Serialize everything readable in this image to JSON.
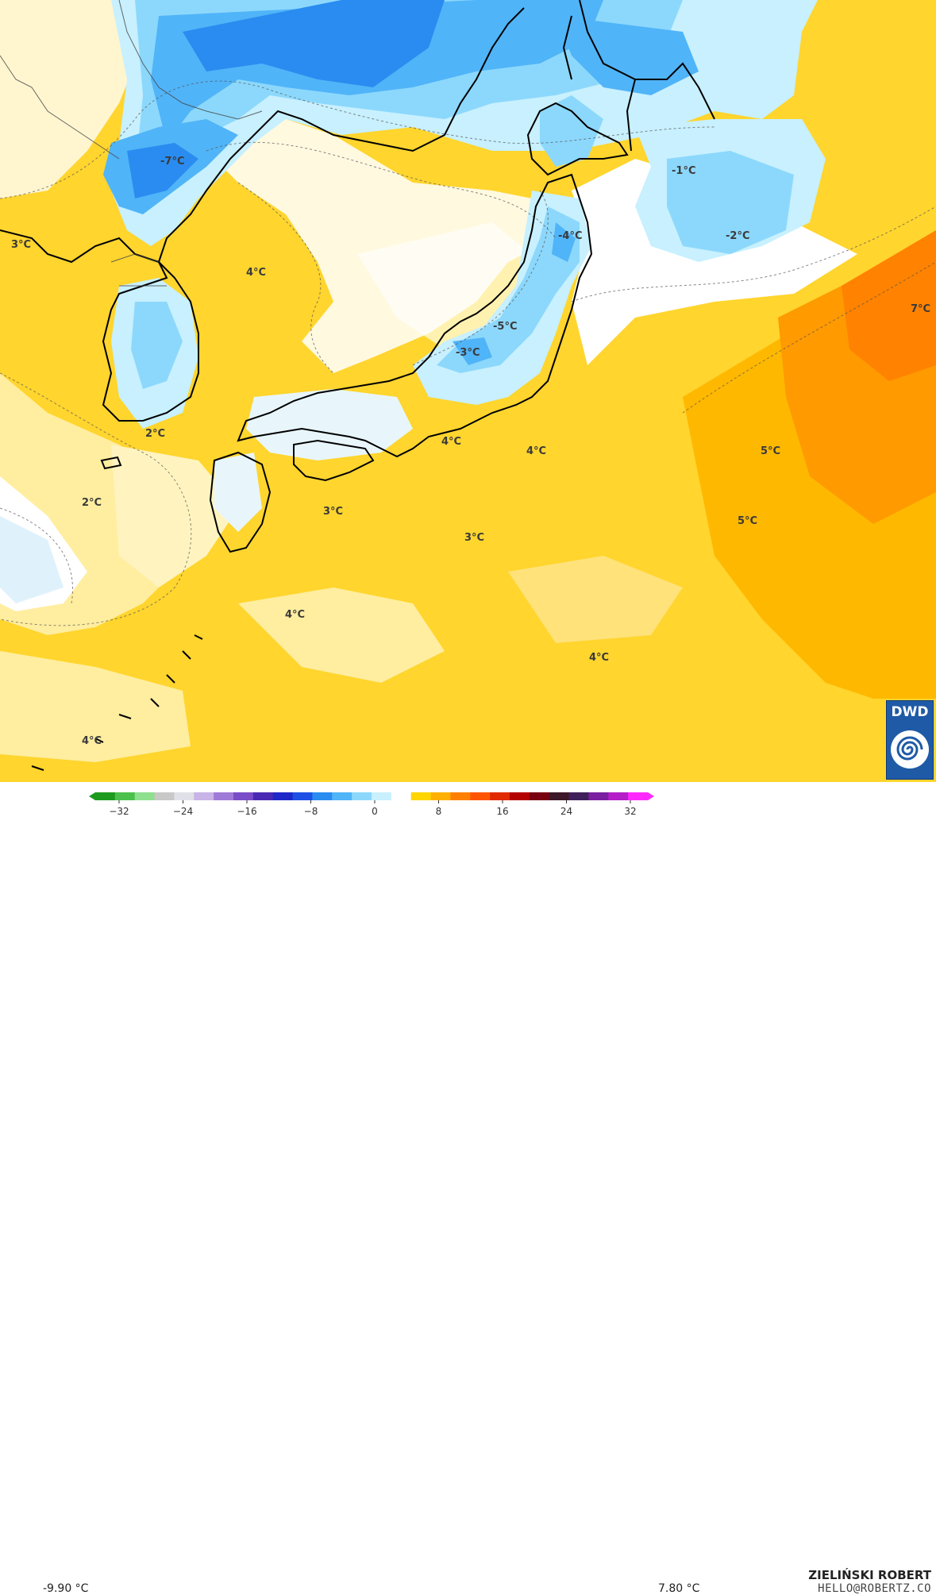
{
  "legend": {
    "min_label": "-9.90 °C",
    "max_label": "7.80 °C",
    "ticks": [
      "−32",
      "−24",
      "−16",
      "−8",
      "0",
      "8",
      "16",
      "24",
      "32"
    ],
    "colors": [
      "#1e9b1e",
      "#4cc04c",
      "#8ee08e",
      "#c8c8c8",
      "#e0e0e8",
      "#c8b4e6",
      "#a07ad8",
      "#7a4cc8",
      "#4a2ab4",
      "#1e28c8",
      "#1e50e6",
      "#2a8cf0",
      "#50b4f8",
      "#8cd8fc",
      "#c8f0fe",
      "#ffffff",
      "#ffd500",
      "#ffb000",
      "#ff8000",
      "#ff5500",
      "#e02a00",
      "#b40000",
      "#780010",
      "#3c1828",
      "#40205a",
      "#7a20a0",
      "#b41ec8",
      "#ff28ff"
    ]
  },
  "labels": [
    {
      "text": "-7°C"
    },
    {
      "text": "3°C"
    },
    {
      "text": "4°C"
    },
    {
      "text": "-4°C"
    },
    {
      "text": "-1°C"
    },
    {
      "text": "-2°C"
    },
    {
      "text": "7°C"
    },
    {
      "text": "-5°C"
    },
    {
      "text": "-3°C"
    },
    {
      "text": "2°C"
    },
    {
      "text": "4°C"
    },
    {
      "text": "4°C"
    },
    {
      "text": "5°C"
    },
    {
      "text": "2°C"
    },
    {
      "text": "3°C"
    },
    {
      "text": "3°C"
    },
    {
      "text": "5°C"
    },
    {
      "text": "4°C"
    },
    {
      "text": "4°C"
    },
    {
      "text": "4°C"
    }
  ],
  "credits": {
    "author": "ZIELIŃSKI ROBERT",
    "email": "HELLO@ROBERTZ.CO",
    "logo_text": "DWD"
  }
}
